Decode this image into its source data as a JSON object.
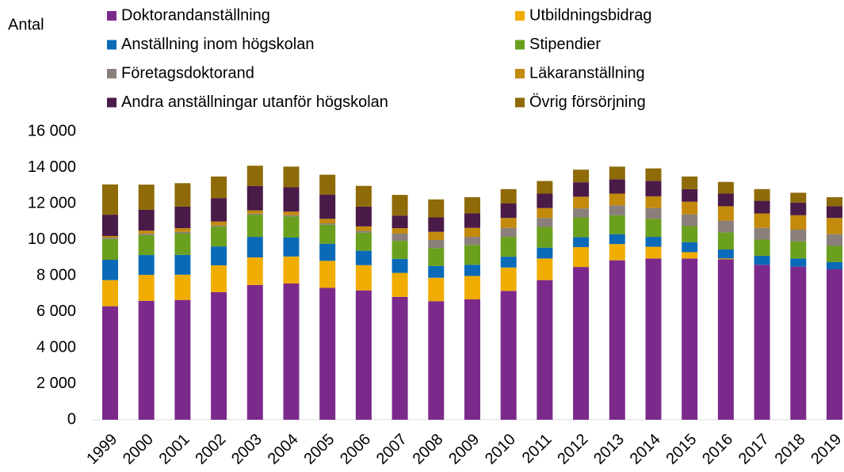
{
  "chart_data": {
    "type": "stacked_bar",
    "y_label": "Antal",
    "categories": [
      "1999",
      "2000",
      "2001",
      "2002",
      "2003",
      "2004",
      "2005",
      "2006",
      "2007",
      "2008",
      "2009",
      "2010",
      "2011",
      "2012",
      "2013",
      "2014",
      "2015",
      "2016",
      "2017",
      "2018",
      "2019"
    ],
    "series": [
      {
        "name": "Doktorandanställning",
        "color": "#7b2a8c",
        "values": [
          6300,
          6600,
          6650,
          7080,
          7480,
          7560,
          7320,
          7180,
          6820,
          6580,
          6680,
          7150,
          7750,
          8480,
          8850,
          8950,
          8950,
          8900,
          8600,
          8500,
          8350
        ]
      },
      {
        "name": "Utbildningsbidrag",
        "color": "#f0ad00",
        "values": [
          1450,
          1440,
          1400,
          1490,
          1530,
          1500,
          1500,
          1400,
          1330,
          1300,
          1300,
          1300,
          1200,
          1100,
          900,
          650,
          350,
          50,
          0,
          0,
          0
        ]
      },
      {
        "name": "Anställning inom högskolan",
        "color": "#0b6ab8",
        "values": [
          1130,
          1100,
          1100,
          1050,
          1140,
          1050,
          950,
          800,
          780,
          650,
          620,
          600,
          600,
          550,
          550,
          550,
          550,
          500,
          500,
          450,
          400
        ]
      },
      {
        "name": "Stipendier",
        "color": "#6aa01e",
        "values": [
          1150,
          1100,
          1200,
          1100,
          1230,
          1180,
          1050,
          1000,
          1000,
          1000,
          1100,
          1100,
          1150,
          1100,
          1050,
          1000,
          900,
          950,
          900,
          950,
          900
        ]
      },
      {
        "name": "Företagsdoktorand",
        "color": "#8a7f7a",
        "values": [
          80,
          80,
          80,
          60,
          60,
          60,
          80,
          100,
          400,
          450,
          450,
          500,
          500,
          500,
          550,
          600,
          650,
          650,
          650,
          650,
          650
        ]
      },
      {
        "name": "Läkaranställning",
        "color": "#c48a0c",
        "values": [
          90,
          180,
          200,
          220,
          180,
          200,
          250,
          250,
          300,
          450,
          500,
          550,
          550,
          650,
          650,
          650,
          700,
          800,
          800,
          800,
          900
        ]
      },
      {
        "name": "Andra anställningar utanför högskolan",
        "color": "#4a1a48",
        "values": [
          1180,
          1150,
          1200,
          1300,
          1350,
          1350,
          1350,
          1100,
          700,
          800,
          800,
          800,
          800,
          800,
          800,
          850,
          700,
          700,
          700,
          700,
          650
        ]
      },
      {
        "name": "Övrig försörjning",
        "color": "#8e6a08",
        "values": [
          1680,
          1400,
          1300,
          1200,
          1130,
          1150,
          1100,
          1150,
          1150,
          1000,
          900,
          800,
          700,
          700,
          700,
          700,
          700,
          650,
          650,
          550,
          500
        ]
      }
    ],
    "ylim": [
      0,
      16000
    ],
    "yticks": [
      0,
      {
        "value": 2000,
        "label": "2 000"
      },
      {
        "value": 4000,
        "label": "4 000"
      },
      {
        "value": 6000,
        "label": "6 000"
      },
      {
        "value": 8000,
        "label": "8 000"
      },
      {
        "value": 10000,
        "label": "10 000"
      },
      {
        "value": 12000,
        "label": "12 000"
      },
      {
        "value": 14000,
        "label": "14 000"
      },
      {
        "value": 16000,
        "label": "16 000"
      }
    ]
  }
}
